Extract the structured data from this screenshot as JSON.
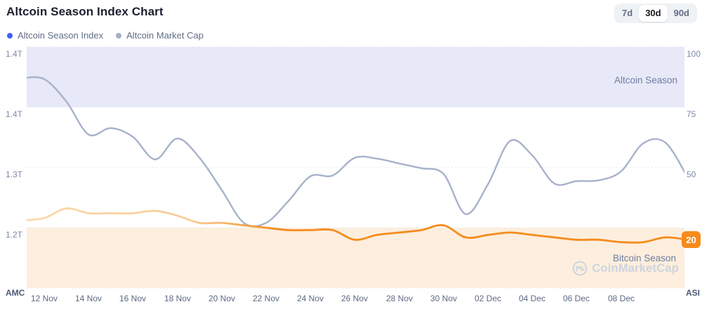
{
  "header": {
    "title": "Altcoin Season Index Chart",
    "ranges": [
      {
        "label": "7d"
      },
      {
        "label": "30d"
      },
      {
        "label": "90d"
      }
    ],
    "active_range": "30d"
  },
  "legend": [
    {
      "label": "Altcoin Season Index",
      "color": "#3861fb"
    },
    {
      "label": "Altcoin Market Cap",
      "color": "#a6b0c3"
    }
  ],
  "watermark": {
    "text": "CoinMarketCap"
  },
  "chart_data": {
    "type": "line",
    "x_dates": [
      "11 Nov",
      "12 Nov",
      "13 Nov",
      "14 Nov",
      "15 Nov",
      "16 Nov",
      "17 Nov",
      "18 Nov",
      "19 Nov",
      "20 Nov",
      "21 Nov",
      "22 Nov",
      "23 Nov",
      "24 Nov",
      "25 Nov",
      "26 Nov",
      "27 Nov",
      "28 Nov",
      "29 Nov",
      "30 Nov",
      "01 Dec",
      "02 Dec",
      "03 Dec",
      "04 Dec",
      "05 Dec",
      "06 Dec",
      "07 Dec",
      "08 Dec",
      "09 Dec",
      "10 Dec",
      "11 Dec"
    ],
    "x_tick_labels": [
      "12 Nov",
      "14 Nov",
      "16 Nov",
      "18 Nov",
      "20 Nov",
      "22 Nov",
      "24 Nov",
      "26 Nov",
      "28 Nov",
      "30 Nov",
      "02 Dec",
      "04 Dec",
      "06 Dec",
      "08 Dec"
    ],
    "series": [
      {
        "name": "Altcoin Market Cap",
        "axis": "left",
        "unit": "T",
        "color": "#a7b2cb",
        "values": [
          1.413,
          1.412,
          1.384,
          1.343,
          1.351,
          1.34,
          1.312,
          1.338,
          1.314,
          1.274,
          1.233,
          1.233,
          1.26,
          1.291,
          1.292,
          1.314,
          1.313,
          1.307,
          1.301,
          1.294,
          1.244,
          1.281,
          1.335,
          1.317,
          1.282,
          1.285,
          1.286,
          1.297,
          1.332,
          1.333,
          1.29
        ]
      },
      {
        "name": "Altcoin Season Index",
        "axis": "right",
        "color_start": "#fad8ab",
        "color_end": "#f48c1c",
        "values": [
          28,
          29,
          33,
          31,
          31,
          31,
          32,
          30,
          27,
          27,
          26,
          25,
          24,
          24,
          24,
          20,
          22,
          23,
          24,
          26,
          21,
          22,
          23,
          22,
          21,
          20,
          20,
          19,
          19,
          21,
          20
        ]
      }
    ],
    "left_axis": {
      "title": "AMC",
      "labels": [
        "1.4T",
        "1.4T",
        "1.3T",
        "1.2T"
      ],
      "max": 1.452,
      "min": 1.152
    },
    "right_axis": {
      "title": "ASI",
      "labels": [
        "100",
        "75",
        "50"
      ],
      "max": 100,
      "min": 0,
      "grid_values": [
        100,
        75,
        50,
        25,
        0
      ]
    },
    "bands": [
      {
        "label": "Altcoin Season",
        "range": [
          75,
          100
        ],
        "color": "#e7e9f8"
      },
      {
        "label": "Bitcoin Season",
        "range": [
          0,
          25
        ],
        "color": "#fdeedd"
      }
    ],
    "current_value": "20",
    "badge_color": "#f68b1d",
    "gridline_color": "#dfe3ee",
    "legend_position": "top-left",
    "grid": "dotted-horizontal"
  }
}
